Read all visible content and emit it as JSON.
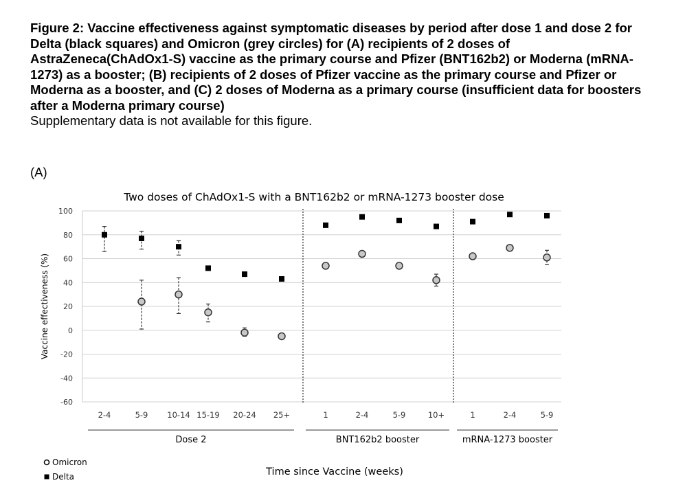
{
  "caption": {
    "title": "Figure 2: Vaccine effectiveness against symptomatic diseases by period after dose 1 and dose 2 for Delta (black squares) and Omicron (grey circles) for (A) recipients of 2 doses of AstraZeneca(ChAdOx1-S) vaccine as the primary course and Pfizer (BNT162b2) or Moderna (mRNA-1273) as a booster; (B) recipients of 2 doses of Pfizer vaccine as the primary course and Pfizer or Moderna as a booster, and (C) 2 doses of Moderna as a primary course (insufficient data for boosters after a Moderna primary course)",
    "note": "Supplementary data is not available for this figure."
  },
  "panel_label": "(A)",
  "chart_data": {
    "type": "scatter",
    "title": "Two doses of ChAdOx1-S with a BNT162b2 or mRNA-1273 booster dose",
    "xlabel": "Time since Vaccine (weeks)",
    "ylabel": "Vaccine effectiveness (%)",
    "ylim": [
      -60,
      100
    ],
    "yticks": [
      100,
      80,
      60,
      40,
      20,
      0,
      -20,
      -40,
      -60
    ],
    "grid": true,
    "legend_position": "bottom-left",
    "categories": [
      "2-4",
      "5-9",
      "10-14",
      "15-19",
      "20-24",
      "25+",
      "1",
      "2-4",
      "5-9",
      "10+",
      "1",
      "2-4",
      "5-9"
    ],
    "groups": [
      {
        "label": "Dose 2",
        "categories": [
          "2-4",
          "5-9",
          "10-14",
          "15-19",
          "20-24",
          "25+"
        ]
      },
      {
        "label": "BNT162b2 booster",
        "categories": [
          "1",
          "2-4",
          "5-9",
          "10+"
        ]
      },
      {
        "label": "mRNA-1273 booster",
        "categories": [
          "1",
          "2-4",
          "5-9"
        ]
      }
    ],
    "series": [
      {
        "name": "Omicron",
        "marker": "circle",
        "color": "#c8c8c8",
        "values": [
          null,
          24,
          30,
          15,
          -2,
          -5,
          54,
          64,
          54,
          42,
          62,
          69,
          61
        ],
        "ci_low": [
          null,
          1,
          14,
          7,
          -5,
          -7,
          null,
          null,
          null,
          37,
          null,
          null,
          55
        ],
        "ci_high": [
          null,
          42,
          44,
          22,
          2,
          -3,
          null,
          null,
          null,
          47,
          null,
          null,
          67
        ]
      },
      {
        "name": "Delta",
        "marker": "square",
        "color": "#000000",
        "values": [
          80,
          77,
          70,
          52,
          47,
          43,
          88,
          95,
          92,
          87,
          91,
          97,
          96
        ],
        "ci_low": [
          66,
          68,
          63,
          null,
          null,
          null,
          null,
          null,
          null,
          null,
          null,
          null,
          null
        ],
        "ci_high": [
          87,
          83,
          75,
          null,
          null,
          null,
          null,
          null,
          null,
          null,
          null,
          null,
          null
        ]
      }
    ]
  }
}
